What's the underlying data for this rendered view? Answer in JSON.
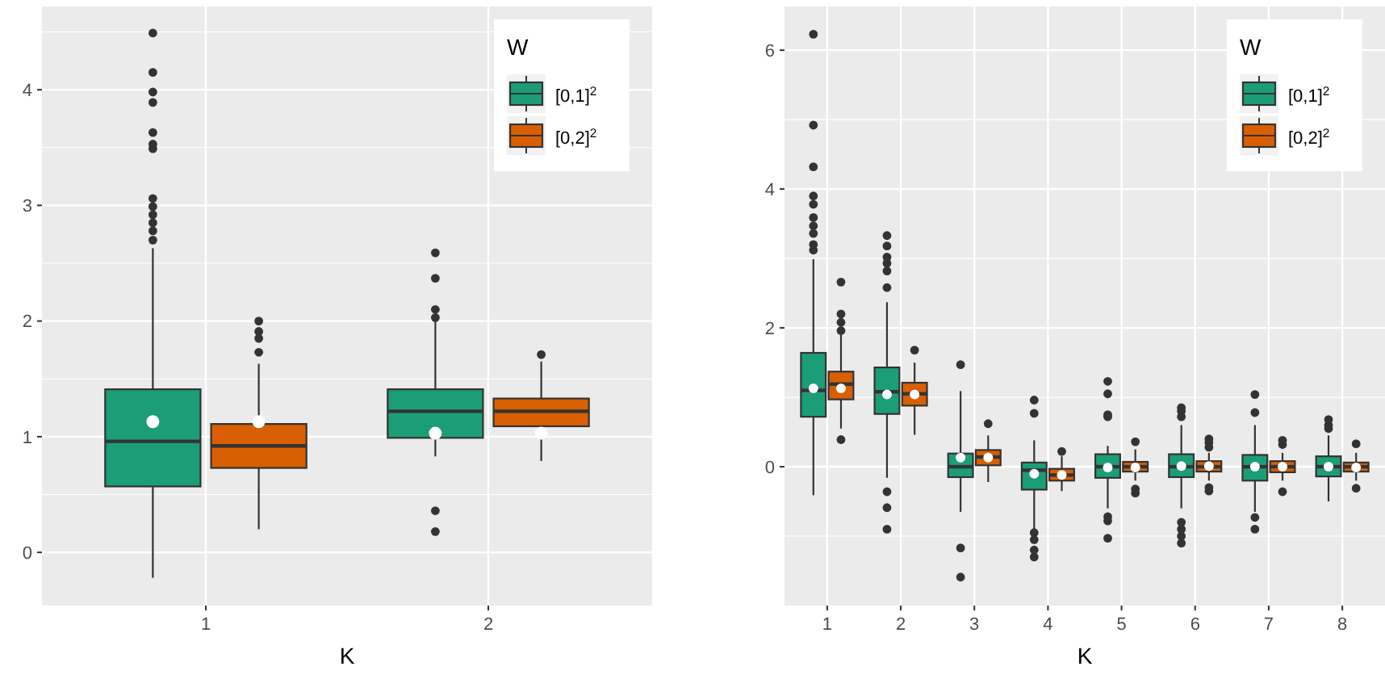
{
  "chart_data": [
    {
      "type": "box",
      "xlabel": "K",
      "categories": [
        "1",
        "2"
      ],
      "ylim": [
        -0.46,
        4.72
      ],
      "yticks": [
        0,
        1,
        2,
        3,
        4
      ],
      "grid": true,
      "legend": "top right",
      "legend_title": "W",
      "series": [
        {
          "name": "[0,1]$^{2}$",
          "color": "#1b9e77",
          "boxes": [
            {
              "low": -0.22,
              "q1": 0.57,
              "median": 0.96,
              "q3": 1.41,
              "high": 2.63,
              "mean": 1.13,
              "outliers": [
                4.49,
                4.15,
                3.98,
                3.89,
                3.63,
                3.53,
                3.49,
                3.06,
                2.99,
                2.92,
                2.85,
                2.78,
                2.7
              ]
            },
            {
              "low": 0.83,
              "q1": 0.99,
              "median": 1.22,
              "q3": 1.41,
              "high": 2.0,
              "mean": 1.03,
              "outliers": [
                2.59,
                2.37,
                2.1,
                2.03,
                0.36,
                0.18
              ]
            }
          ]
        },
        {
          "name": "[0,2]$^{2}$",
          "color": "#d95f02",
          "boxes": [
            {
              "low": 0.2,
              "q1": 0.73,
              "median": 0.92,
              "q3": 1.11,
              "high": 1.63,
              "mean": 1.13,
              "outliers": [
                2.0,
                1.91,
                1.85,
                1.73
              ]
            },
            {
              "low": 0.79,
              "q1": 1.09,
              "median": 1.22,
              "q3": 1.33,
              "high": 1.65,
              "mean": 1.03,
              "outliers": [
                1.71
              ]
            }
          ]
        }
      ]
    },
    {
      "type": "box",
      "xlabel": "K",
      "categories": [
        "1",
        "2",
        "3",
        "4",
        "5",
        "6",
        "7",
        "8"
      ],
      "ylim": [
        -2.0,
        6.63
      ],
      "yticks": [
        0,
        2,
        4,
        6
      ],
      "grid": true,
      "legend": "top right",
      "legend_title": "W",
      "series": [
        {
          "name": "[0,1]$^{2}$",
          "color": "#1b9e77",
          "boxes": [
            {
              "low": -0.41,
              "q1": 0.72,
              "median": 1.1,
              "q3": 1.64,
              "high": 2.99,
              "mean": 1.13,
              "outliers": [
                6.23,
                4.92,
                4.32,
                3.9,
                3.78,
                3.59,
                3.47,
                3.36,
                3.2,
                3.12
              ]
            },
            {
              "low": -0.16,
              "q1": 0.76,
              "median": 1.08,
              "q3": 1.43,
              "high": 2.37,
              "mean": 1.04,
              "outliers": [
                3.33,
                3.18,
                3.02,
                2.93,
                2.82,
                2.58,
                -0.36,
                -0.59,
                -0.9
              ]
            },
            {
              "low": -0.65,
              "q1": -0.15,
              "median": 0.0,
              "q3": 0.19,
              "high": 1.09,
              "mean": 0.13,
              "outliers": [
                1.47,
                -1.17,
                -1.59
              ]
            },
            {
              "low": -0.9,
              "q1": -0.33,
              "median": -0.05,
              "q3": 0.06,
              "high": 0.38,
              "mean": -0.1,
              "outliers": [
                0.77,
                0.96,
                -0.95,
                -1.05,
                -1.2,
                -1.3
              ]
            },
            {
              "low": -0.6,
              "q1": -0.16,
              "median": 0.0,
              "q3": 0.18,
              "high": 0.3,
              "mean": -0.01,
              "outliers": [
                0.72,
                0.75,
                1.05,
                1.23,
                -0.72,
                -0.78,
                -1.03
              ]
            },
            {
              "low": -0.6,
              "q1": -0.15,
              "median": 0.0,
              "q3": 0.18,
              "high": 0.6,
              "mean": 0.01,
              "outliers": [
                0.72,
                0.8,
                0.85,
                -0.8,
                -0.9,
                -1.0,
                -1.1
              ]
            },
            {
              "low": -0.65,
              "q1": -0.2,
              "median": 0.0,
              "q3": 0.17,
              "high": 0.6,
              "mean": 0.0,
              "outliers": [
                0.78,
                1.04,
                -0.73,
                -0.9
              ]
            },
            {
              "low": -0.5,
              "q1": -0.14,
              "median": 0.0,
              "q3": 0.15,
              "high": 0.45,
              "mean": 0.0,
              "outliers": [
                0.55,
                0.6,
                0.68
              ]
            }
          ]
        },
        {
          "name": "[0,2]$^{2}$",
          "color": "#d95f02",
          "boxes": [
            {
              "low": 0.55,
              "q1": 0.97,
              "median": 1.19,
              "q3": 1.37,
              "high": 1.9,
              "mean": 1.13,
              "outliers": [
                2.66,
                2.2,
                2.08,
                1.96,
                0.39
              ]
            },
            {
              "low": 0.46,
              "q1": 0.88,
              "median": 1.05,
              "q3": 1.21,
              "high": 1.5,
              "mean": 1.04,
              "outliers": [
                1.68
              ]
            },
            {
              "low": -0.22,
              "q1": 0.02,
              "median": 0.14,
              "q3": 0.24,
              "high": 0.45,
              "mean": 0.13,
              "outliers": [
                0.62
              ]
            },
            {
              "low": -0.35,
              "q1": -0.2,
              "median": -0.12,
              "q3": -0.03,
              "high": 0.15,
              "mean": -0.12,
              "outliers": [
                0.22
              ]
            },
            {
              "low": -0.2,
              "q1": -0.07,
              "median": 0.0,
              "q3": 0.07,
              "high": 0.25,
              "mean": -0.01,
              "outliers": [
                0.36,
                -0.32,
                -0.38
              ]
            },
            {
              "low": -0.2,
              "q1": -0.07,
              "median": 0.0,
              "q3": 0.08,
              "high": 0.2,
              "mean": 0.01,
              "outliers": [
                0.28,
                0.35,
                0.4,
                -0.3,
                -0.35
              ]
            },
            {
              "low": -0.2,
              "q1": -0.08,
              "median": 0.0,
              "q3": 0.08,
              "high": 0.2,
              "mean": 0.0,
              "outliers": [
                0.32,
                0.38,
                -0.36
              ]
            },
            {
              "low": -0.2,
              "q1": -0.07,
              "median": 0.0,
              "q3": 0.06,
              "high": 0.2,
              "mean": -0.01,
              "outliers": [
                0.33,
                -0.31
              ]
            }
          ]
        }
      ]
    }
  ]
}
